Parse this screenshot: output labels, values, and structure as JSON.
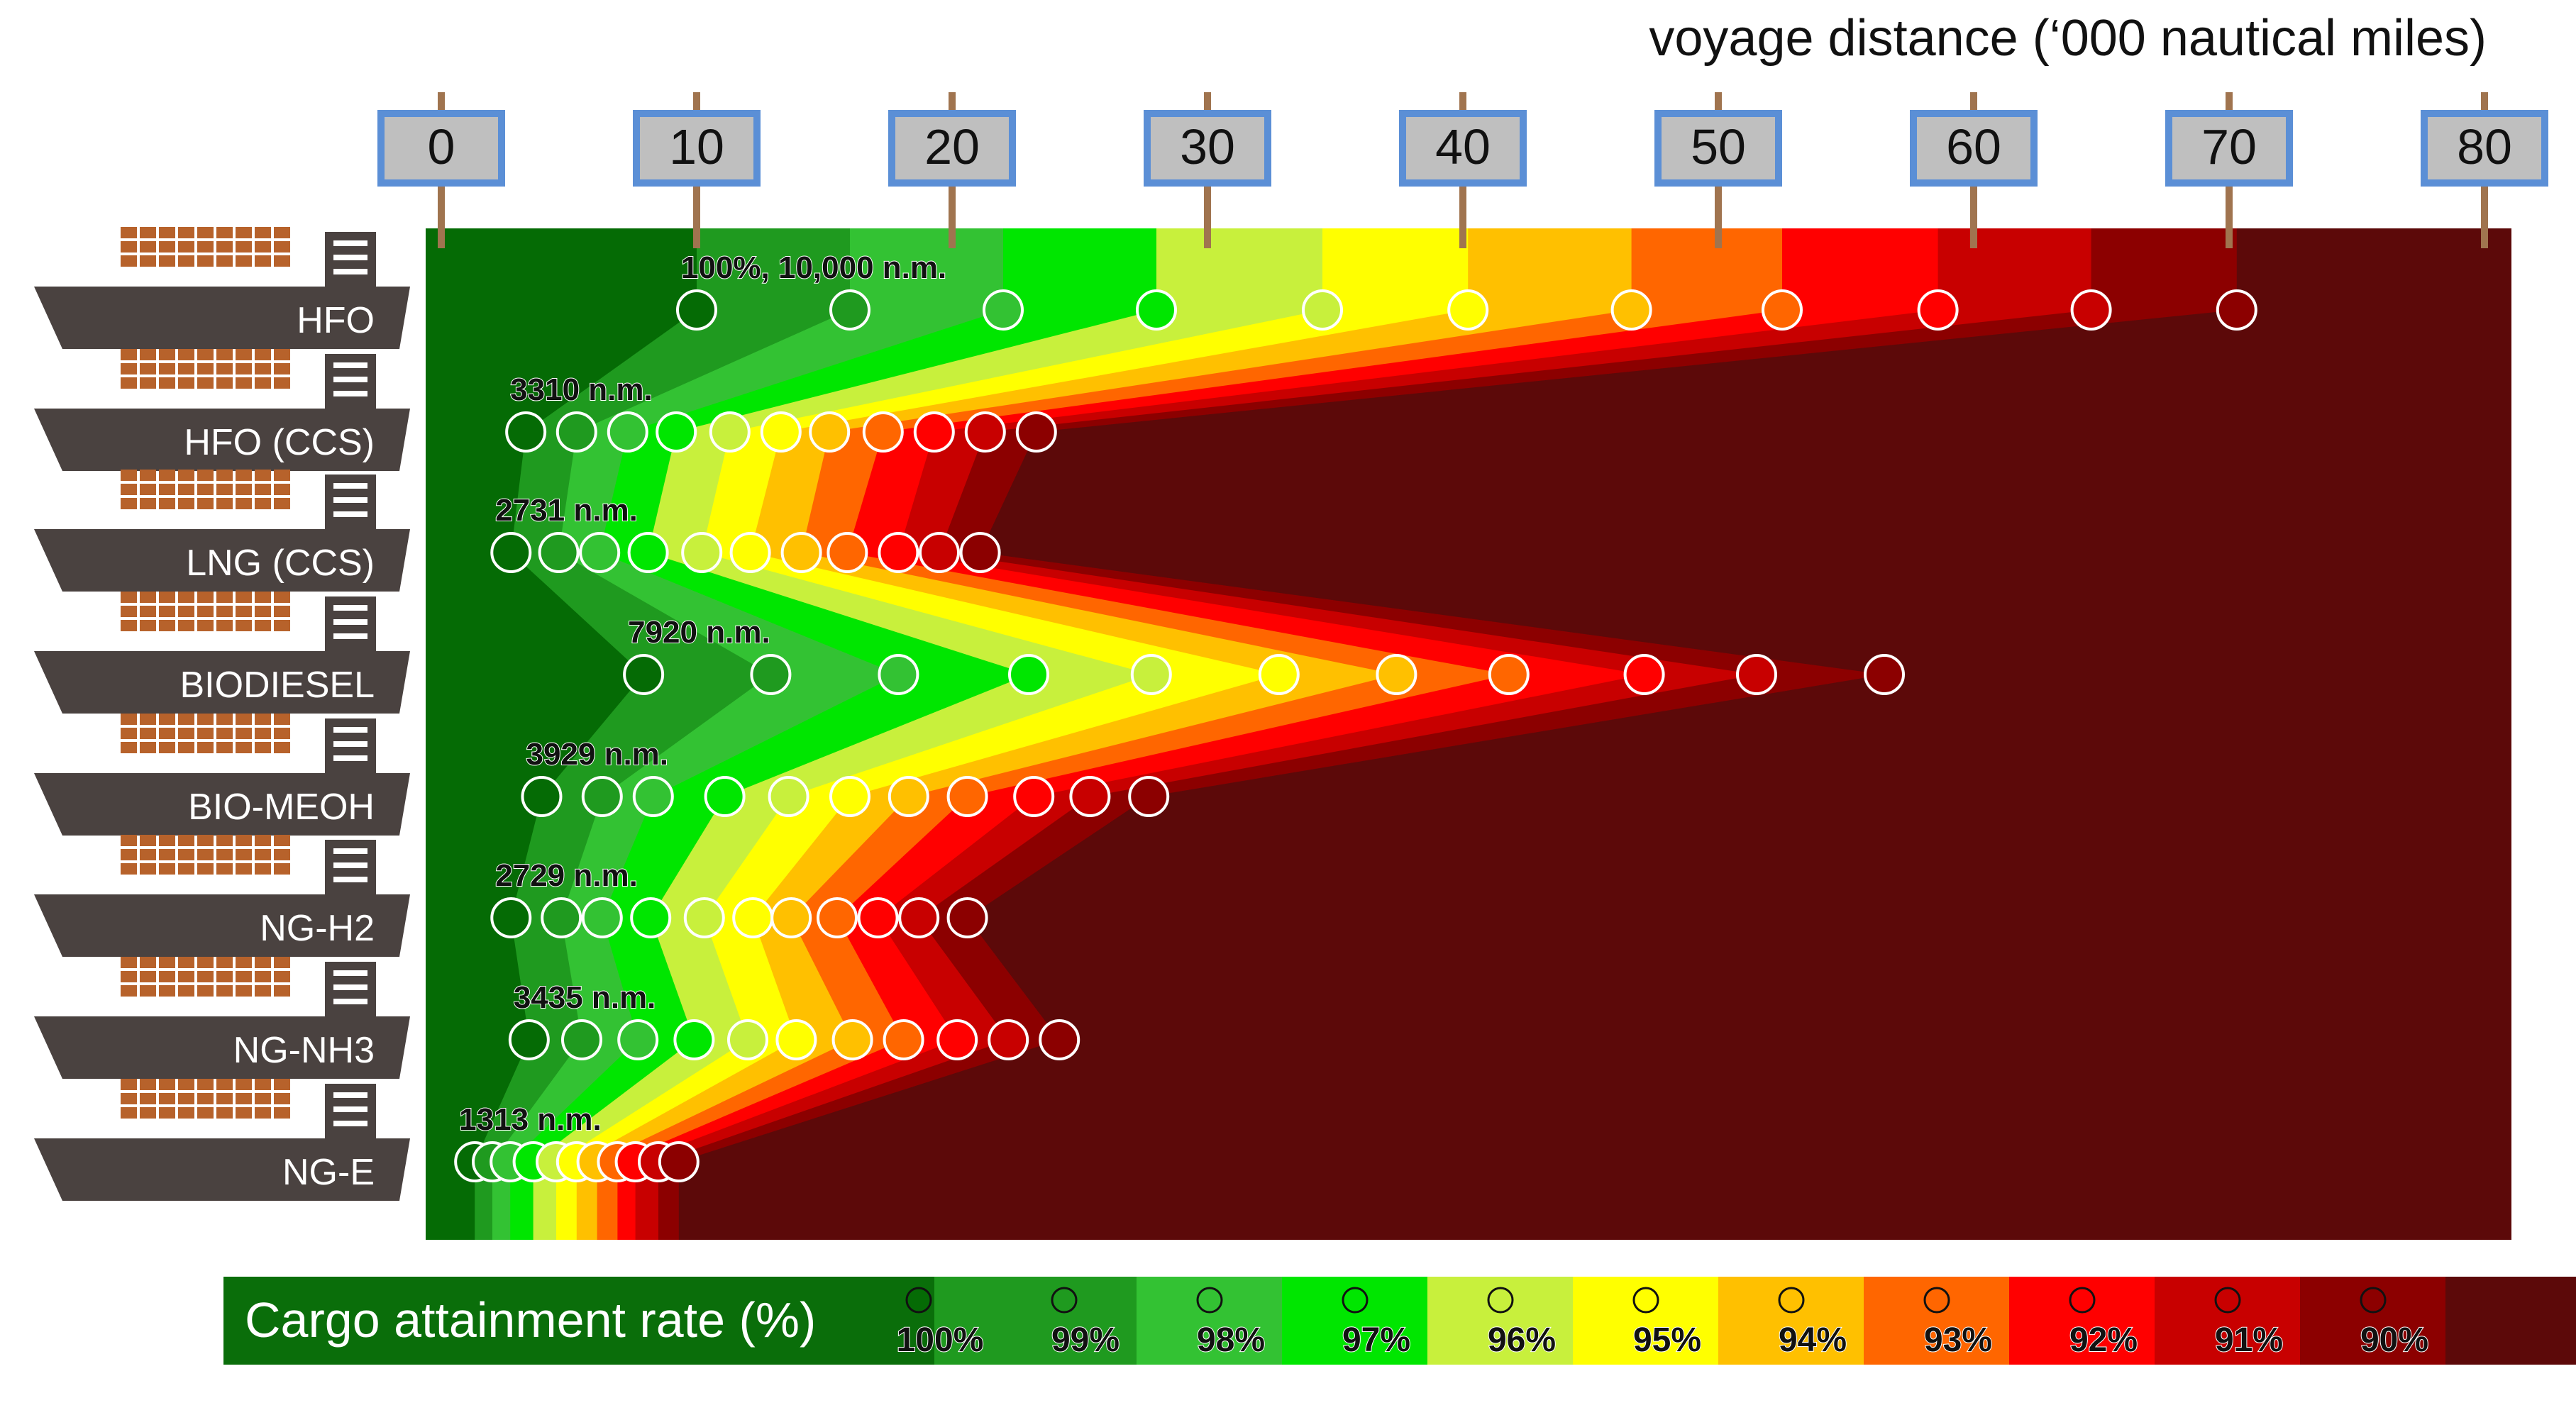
{
  "chart_data": {
    "type": "area",
    "xlabel": "voyage distance (‘000 nautical miles)",
    "x_ticks": [
      "0",
      "10",
      "20",
      "30",
      "40",
      "50",
      "60",
      "70",
      "80"
    ],
    "xlim": [
      0,
      80
    ],
    "legend": {
      "title": "Cargo attainment rate (%)",
      "placement": "bottom",
      "levels": [
        "100%",
        "99%",
        "98%",
        "97%",
        "96%",
        "95%",
        "94%",
        "93%",
        "92%",
        "91%",
        "90%"
      ]
    },
    "colors": [
      "#056b05",
      "#1f9a1f",
      "#33c233",
      "#00e600",
      "#c8f03c",
      "#ffff00",
      "#ffc000",
      "#ff6600",
      "#ff0000",
      "#c80000",
      "#8c0000"
    ],
    "background_color": "#5c0909",
    "series": [
      {
        "name": "HFO",
        "label": "100%, 10,000 n.m.",
        "x": [
          10,
          16,
          22,
          28,
          34.5,
          40.2,
          46.6,
          52.5,
          58.6,
          64.6,
          70.3
        ]
      },
      {
        "name": "HFO (CCS)",
        "label": "3310 n.m.",
        "x": [
          3.31,
          5.3,
          7.3,
          9.2,
          11.3,
          13.3,
          15.2,
          17.3,
          19.3,
          21.3,
          23.3
        ]
      },
      {
        "name": "LNG (CCS)",
        "label": "2731 n.m.",
        "x": [
          2.73,
          4.6,
          6.2,
          8.1,
          10.2,
          12.1,
          14.1,
          15.9,
          17.9,
          19.5,
          21.1
        ]
      },
      {
        "name": "BIODIESEL",
        "label": "7920 n.m.",
        "x": [
          7.92,
          12.9,
          17.9,
          23,
          27.8,
          32.8,
          37.4,
          41.8,
          47.1,
          51.5,
          56.5
        ]
      },
      {
        "name": "BIO-MEOH",
        "label": "3929 n.m.",
        "x": [
          3.93,
          6.3,
          8.3,
          11.1,
          13.6,
          16,
          18.3,
          20.6,
          23.2,
          25.4,
          27.7
        ]
      },
      {
        "name": "NG-H2",
        "label": "2729 n.m.",
        "x": [
          2.73,
          4.7,
          6.3,
          8.2,
          10.3,
          12.2,
          13.7,
          15.5,
          17.1,
          18.7,
          20.6
        ]
      },
      {
        "name": "NG-NH3",
        "label": "3435 n.m.",
        "x": [
          3.44,
          5.5,
          7.7,
          9.9,
          12,
          13.9,
          16.1,
          18.1,
          20.2,
          22.2,
          24.2
        ]
      },
      {
        "name": "NG-E",
        "label": "1313 n.m.",
        "x": [
          1.31,
          2,
          2.7,
          3.6,
          4.5,
          5.3,
          6.1,
          6.9,
          7.6,
          8.5,
          9.3
        ]
      }
    ]
  }
}
